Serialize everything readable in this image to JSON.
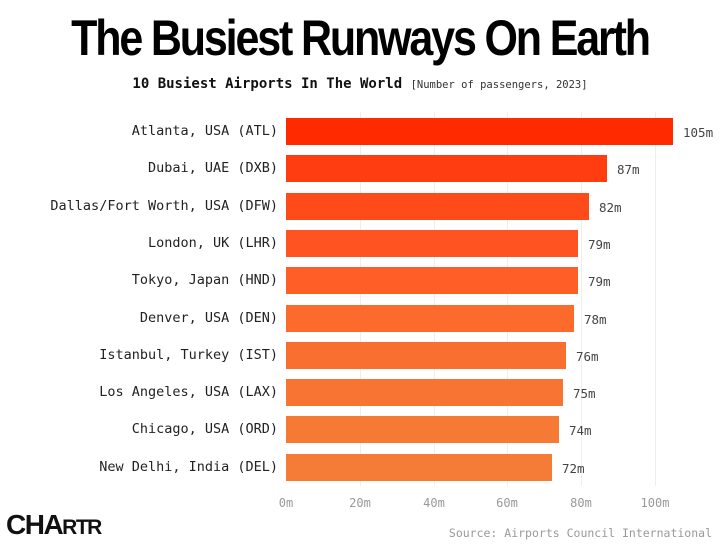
{
  "header": {
    "title": "The Busiest Runways On Earth",
    "subtitle": "10 Busiest Airports In The World",
    "subtitle_note": "[Number of passengers, 2023]"
  },
  "footer": {
    "source": "Source: Airports Council International",
    "logo_big": "CHA",
    "logo_small": "RTR"
  },
  "colors": {
    "bar_gradient": [
      "#ff2a00",
      "#ff3d10",
      "#ff4a1a",
      "#ff5422",
      "#ff5e27",
      "#fc6a2c",
      "#f96f2f",
      "#f77432",
      "#f67934",
      "#f47c36"
    ],
    "grid": "#eeeeee"
  },
  "chart_data": {
    "type": "bar",
    "orientation": "horizontal",
    "title": "The Busiest Runways On Earth",
    "subtitle": "10 Busiest Airports In The World [Number of passengers, 2023]",
    "categories": [
      "Atlanta, USA (ATL)",
      "Dubai, UAE (DXB)",
      "Dallas/Fort Worth, USA (DFW)",
      "London, UK (LHR)",
      "Tokyo, Japan (HND)",
      "Denver, USA (DEN)",
      "Istanbul, Turkey (IST)",
      "Los Angeles, USA (LAX)",
      "Chicago, USA (ORD)",
      "New Delhi, India (DEL)"
    ],
    "values": [
      105,
      87,
      82,
      79,
      79,
      78,
      76,
      75,
      74,
      72
    ],
    "value_labels": [
      "105m",
      "87m",
      "82m",
      "79m",
      "79m",
      "78m",
      "76m",
      "75m",
      "74m",
      "72m"
    ],
    "xlabel": "",
    "ylabel": "",
    "unit": "million passengers",
    "xlim": [
      0,
      105
    ],
    "x_ticks": [
      0,
      20,
      40,
      60,
      80,
      100
    ],
    "x_tick_labels": [
      "0m",
      "20m",
      "40m",
      "60m",
      "80m",
      "100m"
    ],
    "grid": true,
    "legend": "none",
    "source": "Source: Airports Council International"
  }
}
